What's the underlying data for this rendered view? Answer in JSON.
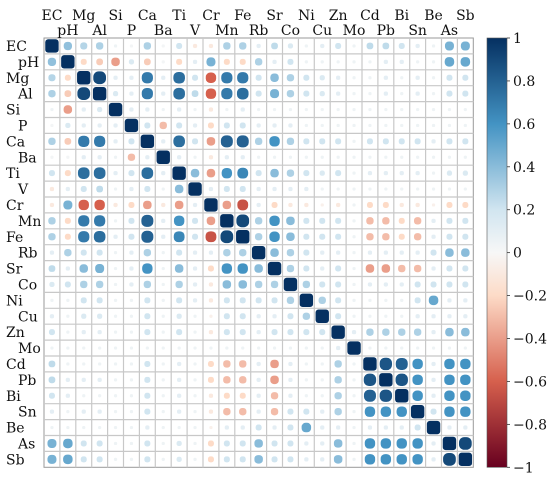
{
  "chart_data": {
    "type": "heatmap",
    "title": "",
    "variables": [
      "EC",
      "pH",
      "Mg",
      "Al",
      "Si",
      "P",
      "Ca",
      "Ba",
      "Ti",
      "V",
      "Cr",
      "Mn",
      "Fe",
      "Rb",
      "Sr",
      "Co",
      "Ni",
      "Cu",
      "Zn",
      "Mo",
      "Cd",
      "Pb",
      "Bi",
      "Sn",
      "Be",
      "As",
      "Sb"
    ],
    "vmin": -1,
    "vmax": 1,
    "colorbar": {
      "ticks": [
        1,
        0.8,
        0.6,
        0.4,
        0.2,
        0,
        -0.2,
        -0.4,
        -0.6,
        -0.8,
        -1
      ],
      "tick_labels": [
        "1",
        "0.8",
        "0.6",
        "0.4",
        "0.2",
        "0",
        "−0.2",
        "−0.4",
        "−0.6",
        "−0.8",
        "−1"
      ],
      "stops": [
        {
          "v": -1,
          "color": "#67001f"
        },
        {
          "v": -0.6,
          "color": "#d6604d"
        },
        {
          "v": -0.2,
          "color": "#fddbc7"
        },
        {
          "v": 0,
          "color": "#f7f7f7"
        },
        {
          "v": 0.2,
          "color": "#d1e5f0"
        },
        {
          "v": 0.6,
          "color": "#4393c3"
        },
        {
          "v": 1,
          "color": "#053061"
        }
      ]
    },
    "matrix": [
      [
        1.0,
        0.38,
        0.28,
        0.3,
        0.05,
        0.02,
        0.3,
        0.02,
        0.2,
        -0.1,
        -0.1,
        0.3,
        0.3,
        0.1,
        0.25,
        0.15,
        0.05,
        0.1,
        0.2,
        0.05,
        0.25,
        0.25,
        0.2,
        0.1,
        0.05,
        0.45,
        0.45
      ],
      [
        0.38,
        1.0,
        -0.2,
        -0.25,
        -0.4,
        0.15,
        -0.25,
        0.02,
        -0.2,
        0.1,
        0.45,
        -0.2,
        -0.2,
        0.3,
        0.1,
        0.2,
        0.05,
        0.05,
        0.05,
        0.05,
        0.05,
        0.1,
        0.1,
        0.05,
        0.05,
        0.5,
        0.5
      ],
      [
        0.28,
        -0.2,
        1.0,
        0.9,
        0.1,
        0.1,
        0.7,
        0.1,
        0.75,
        0.2,
        -0.6,
        0.7,
        0.7,
        0.2,
        0.4,
        0.3,
        0.2,
        0.15,
        0.1,
        0.05,
        0.05,
        0.1,
        0.05,
        0.1,
        0.05,
        0.2,
        0.2
      ],
      [
        0.3,
        -0.25,
        0.9,
        1.0,
        0.15,
        0.1,
        0.7,
        0.1,
        0.75,
        0.25,
        -0.6,
        0.7,
        0.75,
        0.2,
        0.45,
        0.3,
        0.2,
        0.15,
        0.1,
        0.05,
        0.05,
        0.1,
        0.05,
        0.1,
        0.05,
        0.2,
        0.2
      ],
      [
        0.05,
        -0.4,
        0.1,
        0.15,
        1.0,
        0.1,
        0.1,
        0.05,
        0.1,
        0.05,
        -0.1,
        0.05,
        0.1,
        0.05,
        0.05,
        0.05,
        0.05,
        0.05,
        0.05,
        0.05,
        0.05,
        0.05,
        0.05,
        0.05,
        0.05,
        0.05,
        0.05
      ],
      [
        0.02,
        0.15,
        0.1,
        0.1,
        0.1,
        1.0,
        0.2,
        -0.3,
        0.2,
        0.1,
        -0.2,
        0.2,
        0.2,
        0.1,
        0.1,
        0.1,
        0.05,
        0.05,
        0.05,
        0.05,
        0.05,
        0.05,
        0.05,
        0.05,
        0.05,
        0.05,
        0.05
      ],
      [
        0.3,
        -0.25,
        0.7,
        0.7,
        0.1,
        0.2,
        1.0,
        0.1,
        0.75,
        0.2,
        -0.4,
        0.8,
        0.8,
        0.3,
        0.6,
        0.3,
        0.2,
        0.2,
        0.2,
        0.05,
        0.2,
        0.2,
        0.2,
        0.2,
        0.1,
        0.2,
        0.2
      ],
      [
        0.02,
        0.02,
        0.1,
        0.1,
        0.05,
        -0.3,
        0.1,
        1.0,
        0.1,
        0.05,
        -0.1,
        0.1,
        0.1,
        0.05,
        0.05,
        0.05,
        0.05,
        0.05,
        0.05,
        0.05,
        0.05,
        0.05,
        0.05,
        0.05,
        0.05,
        0.05,
        0.05
      ],
      [
        0.2,
        -0.2,
        0.75,
        0.75,
        0.1,
        0.2,
        0.75,
        0.1,
        1.0,
        0.4,
        -0.4,
        0.6,
        0.65,
        0.2,
        0.4,
        0.3,
        0.2,
        0.15,
        0.2,
        0.05,
        0.1,
        0.1,
        0.1,
        0.1,
        0.05,
        0.15,
        0.15
      ],
      [
        -0.1,
        0.1,
        0.2,
        0.25,
        0.05,
        0.1,
        0.2,
        0.05,
        0.4,
        1.0,
        0.1,
        0.2,
        0.2,
        0.1,
        0.1,
        0.1,
        0.1,
        0.05,
        0.05,
        0.05,
        0.05,
        0.05,
        0.05,
        0.05,
        0.05,
        0.05,
        0.05
      ],
      [
        -0.1,
        0.45,
        -0.6,
        -0.6,
        -0.1,
        -0.2,
        -0.4,
        -0.1,
        -0.4,
        0.1,
        1.0,
        -0.4,
        -0.65,
        0.1,
        -0.2,
        -0.1,
        -0.1,
        -0.05,
        -0.1,
        0.05,
        -0.2,
        -0.2,
        -0.1,
        -0.1,
        -0.05,
        -0.2,
        -0.2
      ],
      [
        0.3,
        -0.2,
        0.7,
        0.7,
        0.05,
        0.2,
        0.8,
        0.1,
        0.6,
        0.2,
        -0.4,
        1.0,
        0.9,
        0.3,
        0.6,
        0.4,
        0.2,
        0.2,
        0.2,
        0.05,
        -0.3,
        -0.3,
        -0.2,
        -0.3,
        0.1,
        0.2,
        0.2
      ],
      [
        0.3,
        -0.2,
        0.7,
        0.75,
        0.1,
        0.2,
        0.8,
        0.1,
        0.65,
        0.2,
        -0.65,
        0.9,
        1.0,
        0.3,
        0.6,
        0.4,
        0.2,
        0.2,
        0.2,
        0.05,
        -0.3,
        -0.3,
        -0.2,
        -0.3,
        0.1,
        0.2,
        0.2
      ],
      [
        0.1,
        0.3,
        0.2,
        0.2,
        0.05,
        0.1,
        0.3,
        0.05,
        0.2,
        0.1,
        0.1,
        0.3,
        0.3,
        1.0,
        0.4,
        0.3,
        0.2,
        0.1,
        0.1,
        0.05,
        0.1,
        0.1,
        0.1,
        0.1,
        0.2,
        0.4,
        0.4
      ],
      [
        0.25,
        0.1,
        0.4,
        0.45,
        0.05,
        0.1,
        0.6,
        0.05,
        0.4,
        0.1,
        -0.2,
        0.6,
        0.6,
        0.4,
        1.0,
        0.3,
        0.2,
        0.1,
        0.2,
        0.05,
        -0.4,
        -0.4,
        -0.3,
        -0.3,
        0.1,
        0.2,
        0.2
      ],
      [
        0.15,
        0.2,
        0.3,
        0.3,
        0.05,
        0.1,
        0.3,
        0.05,
        0.3,
        0.1,
        -0.1,
        0.4,
        0.4,
        0.3,
        0.3,
        1.0,
        0.3,
        0.2,
        0.2,
        0.05,
        0.1,
        0.1,
        0.1,
        0.2,
        0.2,
        0.2,
        0.2
      ],
      [
        0.05,
        0.05,
        0.2,
        0.2,
        0.05,
        0.05,
        0.2,
        0.05,
        0.2,
        0.1,
        -0.1,
        0.2,
        0.2,
        0.2,
        0.2,
        0.3,
        1.0,
        0.3,
        0.2,
        0.05,
        0.05,
        0.05,
        0.05,
        0.2,
        0.5,
        0.1,
        0.1
      ],
      [
        0.1,
        0.05,
        0.15,
        0.15,
        0.05,
        0.05,
        0.2,
        0.05,
        0.15,
        0.05,
        -0.05,
        0.2,
        0.2,
        0.1,
        0.1,
        0.2,
        0.3,
        1.0,
        0.2,
        0.05,
        0.05,
        0.05,
        0.05,
        0.1,
        0.1,
        0.1,
        0.1
      ],
      [
        0.2,
        0.05,
        0.1,
        0.1,
        0.05,
        0.05,
        0.2,
        0.05,
        0.2,
        0.05,
        -0.1,
        0.2,
        0.2,
        0.1,
        0.2,
        0.2,
        0.2,
        0.2,
        1.0,
        0.1,
        0.3,
        0.3,
        0.3,
        0.3,
        0.1,
        0.4,
        0.4
      ],
      [
        0.05,
        0.05,
        0.05,
        0.05,
        0.05,
        0.05,
        0.05,
        0.05,
        0.05,
        0.05,
        0.05,
        0.05,
        0.05,
        0.05,
        0.05,
        0.05,
        0.05,
        0.05,
        0.1,
        1.0,
        0.05,
        0.05,
        0.05,
        0.05,
        0.05,
        0.05,
        0.05
      ],
      [
        0.25,
        0.05,
        0.05,
        0.05,
        0.05,
        0.05,
        0.2,
        0.05,
        0.1,
        0.05,
        -0.2,
        -0.3,
        -0.3,
        0.1,
        -0.4,
        0.1,
        0.05,
        0.05,
        0.3,
        0.05,
        1.0,
        0.85,
        0.8,
        0.6,
        0.1,
        0.6,
        0.6
      ],
      [
        0.25,
        0.1,
        0.1,
        0.1,
        0.05,
        0.05,
        0.2,
        0.05,
        0.1,
        0.05,
        -0.2,
        -0.3,
        -0.3,
        0.1,
        -0.4,
        0.1,
        0.05,
        0.05,
        0.3,
        0.05,
        0.85,
        1.0,
        0.85,
        0.6,
        0.1,
        0.6,
        0.6
      ],
      [
        0.2,
        0.1,
        0.05,
        0.05,
        0.05,
        0.05,
        0.2,
        0.05,
        0.1,
        0.05,
        -0.1,
        -0.2,
        -0.2,
        0.1,
        -0.3,
        0.1,
        0.05,
        0.05,
        0.3,
        0.05,
        0.8,
        0.85,
        1.0,
        0.6,
        0.1,
        0.6,
        0.6
      ],
      [
        0.1,
        0.05,
        0.1,
        0.1,
        0.05,
        0.05,
        0.2,
        0.05,
        0.1,
        0.05,
        -0.1,
        -0.3,
        -0.3,
        0.1,
        -0.3,
        0.2,
        0.2,
        0.1,
        0.3,
        0.05,
        0.6,
        0.6,
        0.6,
        1.0,
        0.2,
        0.6,
        0.6
      ],
      [
        0.05,
        0.05,
        0.05,
        0.05,
        0.05,
        0.05,
        0.1,
        0.05,
        0.05,
        0.05,
        -0.05,
        0.1,
        0.1,
        0.2,
        0.1,
        0.2,
        0.5,
        0.1,
        0.1,
        0.05,
        0.1,
        0.1,
        0.1,
        0.2,
        1.0,
        0.1,
        0.1
      ],
      [
        0.45,
        0.5,
        0.2,
        0.2,
        0.05,
        0.05,
        0.2,
        0.05,
        0.15,
        0.05,
        -0.2,
        0.2,
        0.2,
        0.4,
        0.2,
        0.2,
        0.1,
        0.1,
        0.4,
        0.05,
        0.6,
        0.6,
        0.6,
        0.6,
        0.1,
        1.0,
        0.9
      ],
      [
        0.45,
        0.5,
        0.2,
        0.2,
        0.05,
        0.05,
        0.2,
        0.05,
        0.15,
        0.05,
        -0.2,
        0.2,
        0.2,
        0.4,
        0.2,
        0.2,
        0.1,
        0.1,
        0.4,
        0.05,
        0.6,
        0.6,
        0.6,
        0.6,
        0.1,
        0.9,
        1.0
      ]
    ]
  }
}
